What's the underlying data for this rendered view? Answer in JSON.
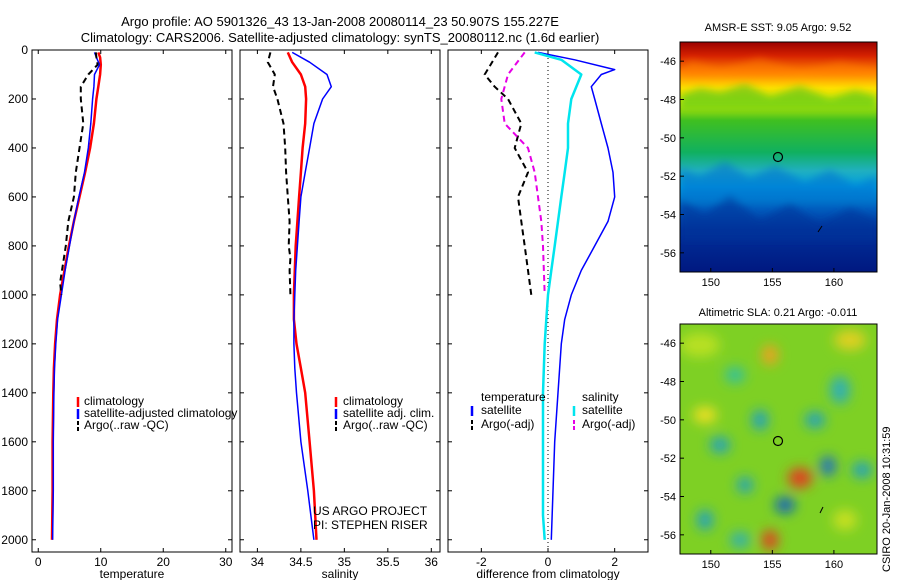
{
  "figure": {
    "title_line1": "Argo profile: AO 5901326_43 13-Jan-2008 20080114_23 50.907S 155.227E",
    "title_line2": "Climatology: CARS2006. Satellite-adjusted climatology: synTS_20080112.nc (1.6d earlier)",
    "project_line1": "US ARGO PROJECT",
    "project_line2": "PI: STEPHEN RISER",
    "footer_right": "CSIRO 20-Jan-2008 10:31:59"
  },
  "chart_data": [
    {
      "type": "line",
      "xlabel": "temperature",
      "xlim": [
        -1,
        31
      ],
      "xticks": [
        0,
        10,
        20,
        30
      ],
      "ylim": [
        2050,
        0
      ],
      "yticks": [
        0,
        200,
        400,
        600,
        800,
        1000,
        1200,
        1400,
        1600,
        1800,
        2000
      ],
      "legend": [
        "climatology",
        "satellite-adjusted climatology",
        "Argo(..raw -QC)"
      ],
      "series": [
        {
          "name": "climatology",
          "color": "#ff0000",
          "style": "solid",
          "width": 2.5,
          "x": [
            9.6,
            9.9,
            10.0,
            9.9,
            9.6,
            9.3,
            8.9,
            8.3,
            7.5,
            6.6,
            5.7,
            4.9,
            4.2,
            3.5,
            3.0,
            2.7,
            2.5,
            2.4,
            2.3,
            2.3,
            2.2
          ],
          "y": [
            10,
            30,
            60,
            100,
            150,
            200,
            300,
            400,
            500,
            600,
            700,
            800,
            900,
            1000,
            1100,
            1200,
            1300,
            1400,
            1600,
            1800,
            2000
          ]
        },
        {
          "name": "satellite-adjusted climatology",
          "color": "#0000ff",
          "style": "solid",
          "width": 1.5,
          "x": [
            9.0,
            9.3,
            9.8,
            9.0,
            8.9,
            8.7,
            8.4,
            8.0,
            7.4,
            6.5,
            5.7,
            5.0,
            4.3,
            3.7,
            3.1,
            2.8,
            2.6,
            2.5,
            2.4,
            2.4,
            2.3
          ],
          "y": [
            10,
            30,
            60,
            100,
            150,
            200,
            300,
            400,
            500,
            600,
            700,
            800,
            900,
            1000,
            1100,
            1200,
            1300,
            1400,
            1600,
            1800,
            2000
          ]
        },
        {
          "name": "Argo(..raw -QC)",
          "color": "#000000",
          "style": "dashed",
          "width": 2,
          "x": [
            9.2,
            9.3,
            9.5,
            8.0,
            6.8,
            6.8,
            7.2,
            6.6,
            6.0,
            5.7,
            4.8,
            4.4,
            3.8,
            3.5,
            3.7
          ],
          "y": [
            10,
            30,
            60,
            100,
            150,
            200,
            300,
            400,
            500,
            600,
            700,
            800,
            900,
            950,
            1000
          ]
        }
      ]
    },
    {
      "type": "line",
      "xlabel": "salinity",
      "xlim": [
        33.8,
        36.1
      ],
      "xticks": [
        34,
        34.5,
        35,
        35.5,
        36
      ],
      "ylim": [
        2050,
        0
      ],
      "yticks": [
        0,
        200,
        400,
        600,
        800,
        1000,
        1200,
        1400,
        1600,
        1800,
        2000
      ],
      "legend": [
        "climatology",
        "satellite adj. clim.",
        "Argo(..raw -QC)"
      ],
      "series": [
        {
          "name": "climatology",
          "color": "#ff0000",
          "style": "solid",
          "width": 2.5,
          "x": [
            34.35,
            34.4,
            34.5,
            34.55,
            34.56,
            34.55,
            34.52,
            34.5,
            34.48,
            34.46,
            34.44,
            34.43,
            34.42,
            34.42,
            34.45,
            34.5,
            34.55,
            34.6,
            34.65,
            34.68
          ],
          "y": [
            10,
            50,
            100,
            150,
            200,
            300,
            400,
            500,
            600,
            700,
            800,
            900,
            1000,
            1100,
            1200,
            1300,
            1400,
            1600,
            1800,
            2000
          ]
        },
        {
          "name": "satellite adj. clim.",
          "color": "#0000ff",
          "style": "solid",
          "width": 1.5,
          "x": [
            34.4,
            34.6,
            34.8,
            34.85,
            34.75,
            34.65,
            34.6,
            34.55,
            34.5,
            34.48,
            34.46,
            34.44,
            34.43,
            34.42,
            34.42,
            34.43,
            34.45,
            34.5,
            34.58,
            34.65
          ],
          "y": [
            10,
            50,
            100,
            150,
            200,
            300,
            400,
            500,
            600,
            700,
            800,
            900,
            1000,
            1100,
            1200,
            1300,
            1400,
            1600,
            1800,
            2000
          ]
        },
        {
          "name": "Argo(..raw -QC)",
          "color": "#000000",
          "style": "dashed",
          "width": 2,
          "x": [
            34.15,
            34.12,
            34.2,
            34.18,
            34.23,
            34.3,
            34.32,
            34.33,
            34.35,
            34.37,
            34.36,
            34.38,
            34.37,
            34.38
          ],
          "y": [
            10,
            50,
            100,
            150,
            200,
            300,
            400,
            500,
            600,
            700,
            800,
            850,
            900,
            1000
          ]
        }
      ]
    },
    {
      "type": "line",
      "xlabel": "difference from climatology",
      "xlim": [
        -3,
        3
      ],
      "xticks": [
        -2,
        0,
        2
      ],
      "ylim": [
        2050,
        0
      ],
      "yticks": [
        0,
        200,
        400,
        600,
        800,
        1000,
        1200,
        1400,
        1600,
        1800,
        2000
      ],
      "legend_headers": [
        "temperature",
        "salinity"
      ],
      "legend": [
        "satellite",
        "Argo(-adj)",
        "satellite",
        "Argo(-adj)"
      ],
      "series": [
        {
          "name": "satellite",
          "color": "#0000ff",
          "style": "solid",
          "width": 1.5,
          "x": [
            -0.3,
            0.8,
            2.0,
            1.6,
            1.3,
            1.4,
            1.6,
            1.8,
            1.95,
            2.0,
            1.8,
            1.4,
            1.0,
            0.7,
            0.5,
            0.4,
            0.3,
            0.2,
            0.15,
            0.1
          ],
          "y": [
            10,
            40,
            80,
            100,
            150,
            200,
            300,
            400,
            500,
            600,
            700,
            800,
            900,
            1000,
            1100,
            1200,
            1400,
            1600,
            1800,
            2000
          ]
        },
        {
          "name": "Argo(-adj)",
          "color": "#000000",
          "style": "dashed",
          "width": 2,
          "x": [
            -1.5,
            -1.9,
            -1.6,
            -1.2,
            -0.8,
            -1.0,
            -0.6,
            -0.9,
            -0.8,
            -0.7,
            -0.6,
            -0.5
          ],
          "y": [
            10,
            100,
            150,
            200,
            300,
            400,
            500,
            600,
            700,
            800,
            900,
            1000
          ]
        },
        {
          "name": "satellite",
          "color": "#00e5ee",
          "style": "solid",
          "width": 2.5,
          "x": [
            -0.4,
            0.4,
            1.0,
            0.7,
            0.6,
            0.6,
            0.5,
            0.4,
            0.3,
            0.2,
            0.1,
            0.0,
            -0.05,
            -0.1,
            -0.15,
            -0.15,
            -0.15,
            -0.15,
            -0.1
          ],
          "y": [
            10,
            40,
            100,
            200,
            300,
            400,
            500,
            600,
            700,
            800,
            900,
            1000,
            1100,
            1200,
            1400,
            1600,
            1800,
            1900,
            2000
          ]
        },
        {
          "name": "Argo(-adj)",
          "color": "#e600e6",
          "style": "dashed",
          "width": 2,
          "x": [
            -0.7,
            -1.2,
            -1.4,
            -1.3,
            -0.6,
            -0.4,
            -0.3,
            -0.2,
            -0.15,
            -0.1
          ],
          "y": [
            10,
            100,
            200,
            300,
            400,
            500,
            600,
            700,
            800,
            1000
          ]
        }
      ]
    },
    {
      "type": "heatmap",
      "title": "AMSR-E SST: 9.05 Argo: 9.52",
      "xlim": [
        147.5,
        163.5
      ],
      "ylim": [
        -57,
        -45
      ],
      "xticks": [
        150,
        155,
        160
      ],
      "yticks": [
        -46,
        -48,
        -50,
        -52,
        -54,
        -56
      ],
      "marker": {
        "lon": 155.227,
        "lat": -50.907
      }
    },
    {
      "type": "heatmap",
      "title": "Altimetric SLA: 0.21 Argo: -0.011",
      "xlim": [
        147.5,
        163.5
      ],
      "ylim": [
        -57,
        -45
      ],
      "xticks": [
        150,
        155,
        160
      ],
      "yticks": [
        -46,
        -48,
        -50,
        -52,
        -54,
        -56
      ],
      "marker": {
        "lon": 155.227,
        "lat": -50.907
      }
    }
  ]
}
